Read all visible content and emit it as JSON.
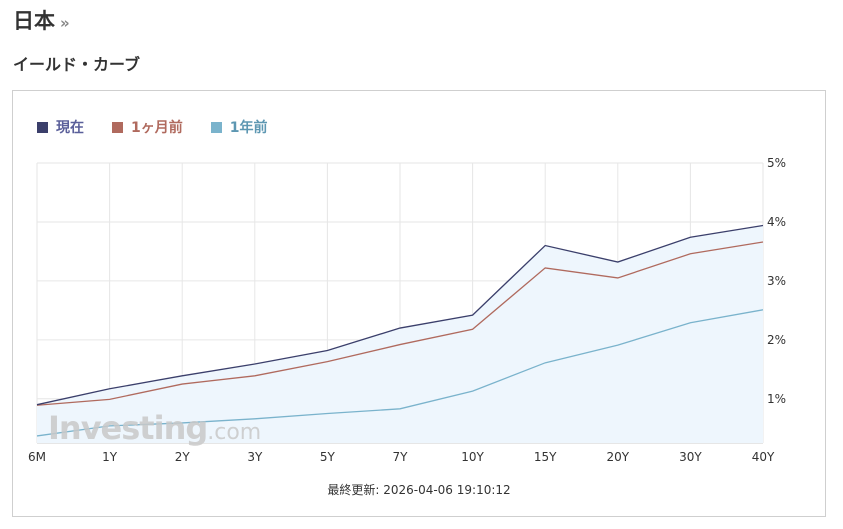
{
  "header": {
    "title": "日本",
    "title_arrow": "»",
    "section_title": "イールド・カーブ"
  },
  "watermark": {
    "main": "Investing",
    "suffix": ".com"
  },
  "chart_data": {
    "type": "line",
    "categories": [
      "6M",
      "1Y",
      "2Y",
      "3Y",
      "5Y",
      "7Y",
      "10Y",
      "15Y",
      "20Y",
      "30Y",
      "40Y"
    ],
    "y_ticks": [
      "1%",
      "2%",
      "3%",
      "4%",
      "5%"
    ],
    "ylim": [
      0.25,
      5.0
    ],
    "y_axis_position": "right",
    "grid": true,
    "legend_position": "top-left",
    "series": [
      {
        "name": "現在",
        "color": "#3b3f6b",
        "label_color": "#5a5f9a",
        "values": [
          0.9,
          1.17,
          1.39,
          1.59,
          1.82,
          2.2,
          2.42,
          3.6,
          3.32,
          3.74,
          3.94
        ]
      },
      {
        "name": "1ヶ月前",
        "color": "#b06a5e",
        "label_color": "#b06a5e",
        "values": [
          0.89,
          0.99,
          1.25,
          1.39,
          1.63,
          1.92,
          2.18,
          3.22,
          3.05,
          3.46,
          3.66
        ]
      },
      {
        "name": "1年前",
        "color": "#7ab3cc",
        "label_color": "#5d97b2",
        "values": [
          0.37,
          0.54,
          0.59,
          0.66,
          0.75,
          0.83,
          1.13,
          1.61,
          1.91,
          2.29,
          2.51
        ]
      }
    ],
    "area_fill": "#eef6fd"
  },
  "footer": {
    "last_updated_label": "最終更新:",
    "last_updated_value": "2026-04-06 19:10:12"
  }
}
